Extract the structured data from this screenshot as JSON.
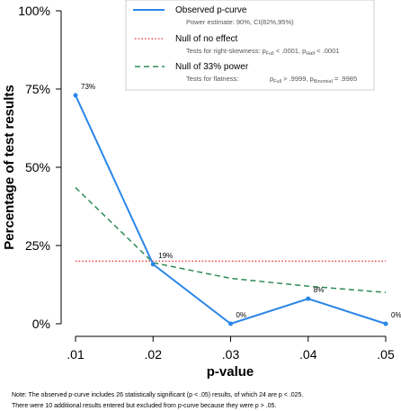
{
  "chart_data": {
    "type": "line",
    "xlabel": "p-value",
    "ylabel": "Percentage of test results",
    "x": [
      0.01,
      0.02,
      0.03,
      0.04,
      0.05
    ],
    "x_tick_labels": [
      ".01",
      ".02",
      ".03",
      ".04",
      ".05"
    ],
    "ylim": [
      0,
      100
    ],
    "y_ticks": [
      0,
      25,
      50,
      75,
      100
    ],
    "y_tick_labels": [
      "0%",
      "25%",
      "50%",
      "75%",
      "100%"
    ],
    "grid": false,
    "legend_position": "top-right",
    "series": [
      {
        "name": "Observed p-curve",
        "style": "solid",
        "color": "#2a86e8",
        "values": [
          73,
          19,
          0,
          8,
          0
        ],
        "point_labels": [
          "73%",
          "19%",
          "0%",
          "8%",
          "0%"
        ]
      },
      {
        "name": "Null of no effect",
        "style": "dotted",
        "color": "#e8262b",
        "values": [
          20,
          20,
          20,
          20,
          20
        ]
      },
      {
        "name": "Null of 33% power",
        "style": "dashed",
        "color": "#2e8b57",
        "values": [
          43.5,
          19.5,
          14.5,
          12,
          10
        ]
      }
    ],
    "legend": {
      "observed_sub": "Power estimate: 90%, CI(82%,95%)",
      "noeffect_sub_prefix": "Tests for right-skewness: p",
      "noeffect_sub_full_sub": "Full",
      "noeffect_sub_mid": " < .0001,  p",
      "noeffect_sub_half_sub": "Half",
      "noeffect_sub_end": " < .0001",
      "power_sub_prefix": "Tests for flatness:",
      "power_sub_p1": "p",
      "power_sub_full_sub": "Full",
      "power_sub_mid": " > .9999,  p",
      "power_sub_binomial_sub": "Binomial",
      "power_sub_end": " = .9985"
    },
    "note_line1": "Note: The observed p-curve includes 26 statistically significant (p < .05) results, of which 24 are p < .025.",
    "note_line2": "There were 10 additional results entered but excluded from p-curve because they were p > .05."
  }
}
